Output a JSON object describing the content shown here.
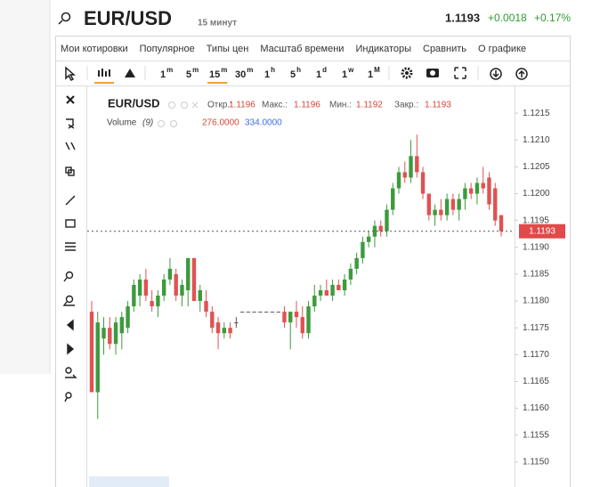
{
  "header": {
    "symbol": "EUR/USD",
    "interval": "15 минут",
    "price": "1.1193",
    "change": "+0.0018",
    "change_pct": "+0.17%"
  },
  "menu": [
    "Мои котировки",
    "Популярное",
    "Типы цен",
    "Масштаб времени",
    "Индикаторы",
    "Сравнить",
    "О графике"
  ],
  "timeframes": [
    {
      "label": "1",
      "unit": "m"
    },
    {
      "label": "5",
      "unit": "m"
    },
    {
      "label": "15",
      "unit": "m"
    },
    {
      "label": "30",
      "unit": "m"
    },
    {
      "label": "1",
      "unit": "h"
    },
    {
      "label": "5",
      "unit": "h"
    },
    {
      "label": "1",
      "unit": "d"
    },
    {
      "label": "1",
      "unit": "w"
    },
    {
      "label": "1",
      "unit": "M"
    }
  ],
  "chart_data": {
    "type": "candlestick",
    "title": "EUR/USD",
    "legend": {
      "open_label": "Откр.:",
      "open": "1.1196",
      "high_label": "Макс.:",
      "high": "1.1196",
      "low_label": "Мин.:",
      "low": "1.1192",
      "close_label": "Закр.:",
      "close": "1.1193"
    },
    "volume_label": "Volume",
    "volume_period": "(9)",
    "volume_values": [
      "276.0000",
      "334.0000"
    ],
    "up_color": "#3d9a3d",
    "down_color": "#e05252",
    "last_price": 1.1193,
    "ylim": [
      1.1145,
      1.122
    ],
    "yticks": [
      {
        "value": 1.115,
        "label": "1.1150"
      },
      1.1155,
      {
        "value": 1.116,
        "label": "1.1160"
      },
      1.1165,
      {
        "value": 1.117,
        "label": "1.1170"
      },
      1.1175,
      {
        "value": 1.118,
        "label": "1.1180"
      },
      1.1185,
      {
        "value": 1.119,
        "label": "1.1190"
      },
      1.1195,
      {
        "value": 1.12,
        "label": "1.1200"
      },
      1.1205,
      {
        "value": 1.121,
        "label": "1.1210"
      },
      1.1215
    ],
    "open": [
      1.1178,
      1.1163,
      1.1173,
      1.1175,
      1.1172,
      1.1174,
      1.1175,
      1.1179,
      1.1181,
      1.1184,
      1.118,
      1.1179,
      1.1181,
      1.1184,
      1.1185,
      1.1181,
      1.1182,
      1.1188,
      1.118,
      1.118,
      1.1178,
      1.1176,
      1.1174,
      1.1175,
      1.1176,
      1.1178,
      1.1178,
      1.1178,
      1.1178,
      1.1178,
      1.1178,
      1.1178,
      1.1178,
      1.1176,
      1.1178,
      1.1177,
      1.1174,
      1.1179,
      1.1181,
      1.1182,
      1.1181,
      1.1183,
      1.1182,
      1.1184,
      1.1186,
      1.1188,
      1.1191,
      1.1192,
      1.1194,
      1.1193,
      1.1197,
      1.1201,
      1.1204,
      1.1203,
      1.1207,
      1.1204,
      1.12,
      1.1196,
      1.1197,
      1.1196,
      1.1199,
      1.1197,
      1.1199,
      1.1201,
      1.12,
      1.1202,
      1.1203,
      1.1201,
      1.1196
    ],
    "high": [
      1.118,
      1.1178,
      1.1177,
      1.1177,
      1.1177,
      1.1178,
      1.118,
      1.1184,
      1.1185,
      1.1186,
      1.1182,
      1.1182,
      1.1185,
      1.1188,
      1.1186,
      1.1184,
      1.1188,
      1.1188,
      1.1183,
      1.1182,
      1.1179,
      1.1177,
      1.1176,
      1.1176,
      1.1177,
      1.1178,
      1.1178,
      1.1178,
      1.1178,
      1.1178,
      1.1178,
      1.1178,
      1.1179,
      1.1178,
      1.118,
      1.1179,
      1.118,
      1.1183,
      1.1183,
      1.1184,
      1.1184,
      1.1184,
      1.1185,
      1.1187,
      1.1189,
      1.1192,
      1.1193,
      1.1195,
      1.1195,
      1.1198,
      1.1202,
      1.1205,
      1.1206,
      1.121,
      1.1211,
      1.1205,
      1.12,
      1.1198,
      1.1199,
      1.12,
      1.12,
      1.12,
      1.1202,
      1.1202,
      1.1203,
      1.1205,
      1.1204,
      1.1202,
      1.1196
    ],
    "low": [
      1.1163,
      1.1158,
      1.117,
      1.1171,
      1.117,
      1.1171,
      1.1174,
      1.1178,
      1.1179,
      1.118,
      1.1178,
      1.1177,
      1.118,
      1.1183,
      1.118,
      1.1179,
      1.1179,
      1.118,
      1.1178,
      1.1177,
      1.1174,
      1.1171,
      1.1173,
      1.1173,
      1.1175,
      1.1178,
      1.1178,
      1.1178,
      1.1178,
      1.1178,
      1.1178,
      1.1178,
      1.1175,
      1.1171,
      1.1175,
      1.1173,
      1.1173,
      1.1178,
      1.118,
      1.1181,
      1.118,
      1.1182,
      1.1181,
      1.1183,
      1.1185,
      1.1187,
      1.119,
      1.119,
      1.1192,
      1.1192,
      1.1196,
      1.12,
      1.1202,
      1.1202,
      1.1203,
      1.1199,
      1.1195,
      1.1194,
      1.1195,
      1.1195,
      1.1196,
      1.1195,
      1.1197,
      1.1199,
      1.1198,
      1.12,
      1.1197,
      1.1194,
      1.1192
    ],
    "close": [
      1.1163,
      1.1176,
      1.1175,
      1.1172,
      1.1176,
      1.1177,
      1.1179,
      1.1183,
      1.1184,
      1.1181,
      1.1179,
      1.1181,
      1.1184,
      1.1186,
      1.1181,
      1.1183,
      1.1188,
      1.118,
      1.1182,
      1.1178,
      1.1175,
      1.1174,
      1.1175,
      1.1174,
      1.1176,
      1.1178,
      1.1178,
      1.1178,
      1.1178,
      1.1178,
      1.1178,
      1.1178,
      1.1176,
      1.1178,
      1.1177,
      1.1174,
      1.1179,
      1.1181,
      1.1182,
      1.1181,
      1.1183,
      1.1182,
      1.1184,
      1.1186,
      1.1188,
      1.1191,
      1.1192,
      1.1194,
      1.1193,
      1.1197,
      1.1201,
      1.1204,
      1.1203,
      1.1207,
      1.1204,
      1.12,
      1.1196,
      1.1197,
      1.1196,
      1.1199,
      1.1197,
      1.1199,
      1.1201,
      1.12,
      1.1202,
      1.1201,
      1.1198,
      1.1195,
      1.1193
    ]
  }
}
